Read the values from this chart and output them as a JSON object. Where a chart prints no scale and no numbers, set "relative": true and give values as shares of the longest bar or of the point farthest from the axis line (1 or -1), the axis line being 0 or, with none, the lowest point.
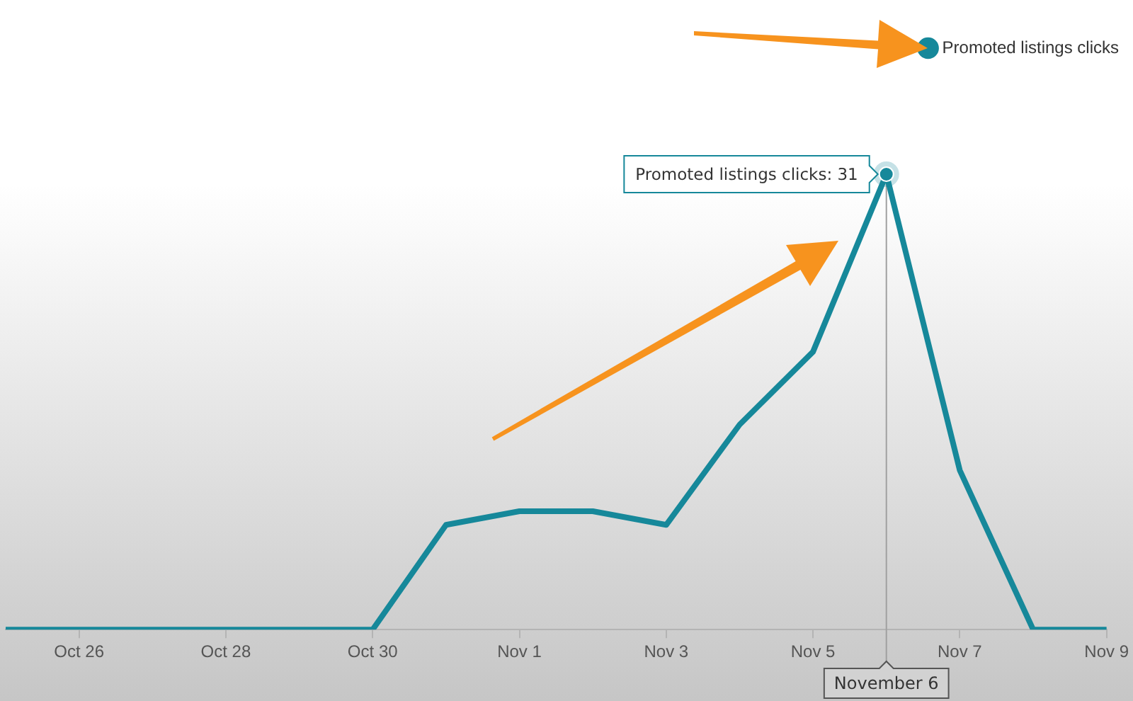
{
  "chart_data": {
    "type": "line",
    "x": [
      "--10-25",
      "--10-26",
      "--10-27",
      "--10-28",
      "--10-29",
      "--10-30",
      "--10-31",
      "--11-01",
      "--11-02",
      "--11-03",
      "--11-04",
      "--11-05",
      "--11-06",
      "--11-07",
      "--11-08",
      "--11-09"
    ],
    "series": [
      {
        "name": "Promoted listings clicks",
        "color": "#16889a",
        "values": [
          0,
          0,
          0,
          0,
          0,
          0,
          0.23,
          0.26,
          0.26,
          0.23,
          0.45,
          0.61,
          1,
          0.35,
          0,
          0
        ]
      }
    ],
    "relative": true,
    "xlim": [
      "--10-25",
      "--11-09"
    ],
    "xticks": [
      {
        "value": "--10-26",
        "label": "Oct 26"
      },
      {
        "value": "--10-28",
        "label": "Oct 28"
      },
      {
        "value": "--10-30",
        "label": "Oct 30"
      },
      {
        "value": "--11-01",
        "label": "Nov 1"
      },
      {
        "value": "--11-03",
        "label": "Nov 3"
      },
      {
        "value": "--11-05",
        "label": "Nov 5"
      },
      {
        "value": "--11-07",
        "label": "Nov 7"
      },
      {
        "value": "--11-09",
        "label": "Nov 9"
      }
    ],
    "tick_labels": "x",
    "legend": "top right",
    "marker": "none",
    "line_style": "solid",
    "annotations": [
      {
        "text": "Promoted listings clicks: 31",
        "x": "--11-06",
        "y": 1
      }
    ],
    "ref_lines": [
      {
        "axis": "x",
        "value": "--11-06",
        "label": "November 6",
        "color": "#a0a0a0"
      }
    ]
  }
}
